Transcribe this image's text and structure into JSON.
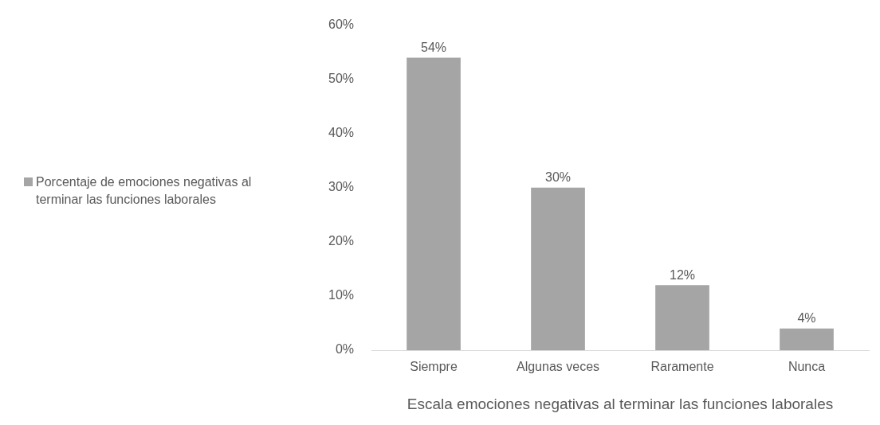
{
  "chart_data": {
    "type": "bar",
    "xlabel": "Escala emociones negativas al terminar las funciones laborales",
    "categories": [
      "Siempre",
      "Algunas veces",
      "Raramente",
      "Nunca"
    ],
    "series": [
      {
        "name": "Porcentaje de emociones negativas al terminar las funciones laborales",
        "color": "#a5a5a5",
        "values": [
          54,
          30,
          12,
          4
        ],
        "value_labels": [
          "54%",
          "30%",
          "12%",
          "4%"
        ]
      }
    ],
    "ylim": [
      0,
      60
    ],
    "yticks": [
      {
        "value": 0,
        "label": "0%"
      },
      {
        "value": 10,
        "label": "10%"
      },
      {
        "value": 20,
        "label": "20%"
      },
      {
        "value": 30,
        "label": "30%"
      },
      {
        "value": 40,
        "label": "40%"
      },
      {
        "value": 50,
        "label": "50%"
      },
      {
        "value": 60,
        "label": "60%"
      }
    ],
    "grid": false,
    "legend": "left"
  }
}
